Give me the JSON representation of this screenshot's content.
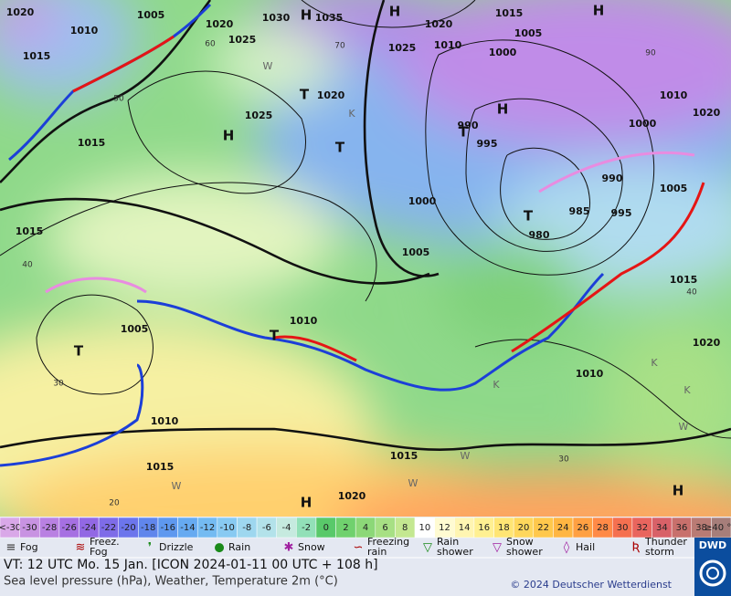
{
  "map": {
    "isobar_labels": [
      "1020",
      "1005",
      "1010",
      "1015",
      "1020",
      "1030",
      "1035",
      "1025",
      "1020",
      "1015",
      "1005",
      "1010",
      "1025",
      "1000",
      "1020",
      "1025",
      "1015",
      "995",
      "990",
      "1010",
      "1000",
      "1020",
      "990",
      "1005",
      "985",
      "995",
      "980",
      "1000",
      "1005",
      "1015",
      "1010",
      "1005",
      "1015",
      "1020",
      "1010",
      "1010",
      "1015",
      "1015",
      "1020"
    ],
    "centers": [
      "H",
      "H",
      "H",
      "H",
      "T",
      "T",
      "H",
      "T",
      "T",
      "T",
      "T",
      "H",
      "H"
    ],
    "temperatures": [
      "60",
      "50",
      "70",
      "90",
      "40",
      "30",
      "20",
      "30",
      "40"
    ],
    "letters": [
      "W",
      "K",
      "K",
      "K",
      "W",
      "W",
      "W",
      "W",
      "K"
    ]
  },
  "legend": {
    "scale": [
      {
        "label": "<-30",
        "color": "#d9a8e8"
      },
      {
        "label": "-30",
        "color": "#c893e2"
      },
      {
        "label": "-28",
        "color": "#b981e2"
      },
      {
        "label": "-26",
        "color": "#a670e2"
      },
      {
        "label": "-24",
        "color": "#9268e4"
      },
      {
        "label": "-22",
        "color": "#7e6ce8"
      },
      {
        "label": "-20",
        "color": "#6c75ec"
      },
      {
        "label": "-18",
        "color": "#6086ec"
      },
      {
        "label": "-16",
        "color": "#5e98ef"
      },
      {
        "label": "-14",
        "color": "#66aaf1"
      },
      {
        "label": "-12",
        "color": "#74bbf2"
      },
      {
        "label": "-10",
        "color": "#88caf2"
      },
      {
        "label": "-8",
        "color": "#9ed7ef"
      },
      {
        "label": "-6",
        "color": "#b3e2ea"
      },
      {
        "label": "-4",
        "color": "#c6eadf"
      },
      {
        "label": "-2",
        "color": "#92e0b8"
      },
      {
        "label": "0",
        "color": "#59c96a"
      },
      {
        "label": "2",
        "color": "#70d16e"
      },
      {
        "label": "4",
        "color": "#8cd878"
      },
      {
        "label": "6",
        "color": "#a7e084"
      },
      {
        "label": "8",
        "color": "#c4e891"
      },
      {
        "label": "10",
        "color": "#ffffff"
      },
      {
        "label": "12",
        "color": "#fffbd2"
      },
      {
        "label": "14",
        "color": "#fff5b2"
      },
      {
        "label": "16",
        "color": "#fff092"
      },
      {
        "label": "18",
        "color": "#ffe574"
      },
      {
        "label": "20",
        "color": "#ffd75c"
      },
      {
        "label": "22",
        "color": "#ffc84c"
      },
      {
        "label": "24",
        "color": "#ffb642"
      },
      {
        "label": "26",
        "color": "#ffa042"
      },
      {
        "label": "28",
        "color": "#ff8a47"
      },
      {
        "label": "30",
        "color": "#f57050"
      },
      {
        "label": "32",
        "color": "#e9655e"
      },
      {
        "label": "34",
        "color": "#d86168"
      },
      {
        "label": "36",
        "color": "#c8706c"
      },
      {
        "label": "38",
        "color": "#b97b74"
      },
      {
        "label": "≥40 °C",
        "color": "#a67e7a"
      }
    ],
    "weather": [
      {
        "lines": [
          "Fog"
        ]
      },
      {
        "lines": [
          "Freez.",
          "Fog"
        ]
      },
      {
        "lines": [
          "Drizzle"
        ]
      },
      {
        "lines": [
          "Rain"
        ]
      },
      {
        "lines": [
          "Snow"
        ]
      },
      {
        "lines": [
          "Freezing",
          "rain"
        ]
      },
      {
        "lines": [
          "Rain",
          "shower"
        ]
      },
      {
        "lines": [
          "Snow",
          "shower"
        ]
      },
      {
        "lines": [
          "Hail"
        ]
      },
      {
        "lines": [
          "Thunder",
          "storm"
        ]
      }
    ]
  },
  "footer": {
    "valid_time": "VT: 12 UTC Mo.  15 Jan. [ICON 2024-01-11  00 UTC + 108 h]",
    "description": "Sea level pressure (hPa), Weather, Temperature 2m (°C)",
    "copyright": "© 2024 Deutscher Wetterdienst",
    "logo": "DWD"
  }
}
